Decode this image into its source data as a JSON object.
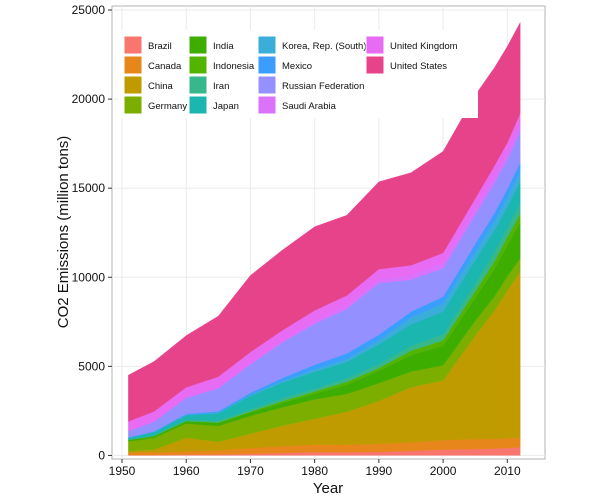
{
  "chart_data": {
    "type": "area",
    "stacked": true,
    "title": "",
    "xlabel": "Year",
    "ylabel": "CO2 Emissions (million tons)",
    "xlim": [
      1950,
      2014
    ],
    "ylim": [
      -200,
      25000
    ],
    "x_ticks": [
      1950,
      1960,
      1970,
      1980,
      1990,
      2000,
      2010
    ],
    "y_ticks": [
      0,
      5000,
      10000,
      15000,
      20000,
      25000
    ],
    "grid": true,
    "legend_position": "top-left inside",
    "x": [
      1951,
      1955,
      1960,
      1965,
      1970,
      1975,
      1980,
      1985,
      1990,
      1995,
      2000,
      2005,
      2008,
      2010,
      2012
    ],
    "series": [
      {
        "name": "Brazil",
        "color": "#F8766D",
        "values": [
          20,
          25,
          45,
          55,
          85,
          145,
          190,
          180,
          205,
          255,
          330,
          360,
          390,
          420,
          470
        ]
      },
      {
        "name": "Canada",
        "color": "#E7861B",
        "values": [
          140,
          150,
          195,
          235,
          335,
          375,
          420,
          425,
          455,
          475,
          530,
          560,
          540,
          540,
          520
        ]
      },
      {
        "name": "China",
        "color": "#C09B00",
        "values": [
          80,
          160,
          750,
          480,
          800,
          1150,
          1450,
          1850,
          2400,
          3100,
          3350,
          5800,
          7200,
          8300,
          9300
        ]
      },
      {
        "name": "Germany",
        "color": "#7CAE00",
        "values": [
          550,
          650,
          800,
          880,
          1000,
          1030,
          1090,
          1000,
          1000,
          880,
          850,
          830,
          800,
          790,
          780
        ]
      },
      {
        "name": "India",
        "color": "#3DAE00",
        "values": [
          65,
          90,
          120,
          175,
          200,
          260,
          320,
          520,
          690,
          920,
          1100,
          1300,
          1550,
          1750,
          2000
        ]
      },
      {
        "name": "Indonesia",
        "color": "#53B400",
        "values": [
          15,
          20,
          25,
          30,
          40,
          90,
          120,
          160,
          150,
          250,
          300,
          360,
          420,
          450,
          500
        ]
      },
      {
        "name": "Iran",
        "color": "#37B78C",
        "values": [
          15,
          30,
          55,
          85,
          120,
          160,
          160,
          200,
          230,
          280,
          340,
          440,
          510,
          530,
          560
        ]
      },
      {
        "name": "Japan",
        "color": "#1BB6AF",
        "values": [
          100,
          180,
          260,
          430,
          770,
          880,
          950,
          910,
          1100,
          1200,
          1270,
          1300,
          1230,
          1170,
          1250
        ]
      },
      {
        "name": "Korea, Rep. (South)",
        "color": "#3AADD8",
        "values": [
          8,
          15,
          20,
          30,
          55,
          90,
          130,
          170,
          250,
          380,
          460,
          480,
          500,
          560,
          590
        ]
      },
      {
        "name": "Mexico",
        "color": "#3B9EFF",
        "values": [
          25,
          35,
          60,
          75,
          110,
          170,
          260,
          310,
          300,
          330,
          385,
          440,
          475,
          450,
          470
        ]
      },
      {
        "name": "Russian Federation",
        "color": "#9590FF",
        "values": [
          350,
          550,
          900,
          1300,
          1600,
          2000,
          2300,
          2500,
          2900,
          1800,
          1600,
          1650,
          1700,
          1650,
          1750
        ]
      },
      {
        "name": "Saudi Arabia",
        "color": "#DB72FB",
        "values": [
          3,
          5,
          15,
          25,
          35,
          60,
          170,
          190,
          200,
          250,
          300,
          350,
          420,
          450,
          520
        ]
      },
      {
        "name": "United Kingdom",
        "color": "#E76BF3",
        "values": [
          540,
          560,
          580,
          620,
          650,
          620,
          580,
          560,
          580,
          550,
          550,
          550,
          530,
          490,
          490
        ]
      },
      {
        "name": "United States",
        "color": "#E7438B",
        "values": [
          2600,
          2800,
          2900,
          3400,
          4300,
          4500,
          4700,
          4500,
          4900,
          5200,
          5700,
          5800,
          5500,
          5400,
          5100
        ]
      }
    ]
  }
}
